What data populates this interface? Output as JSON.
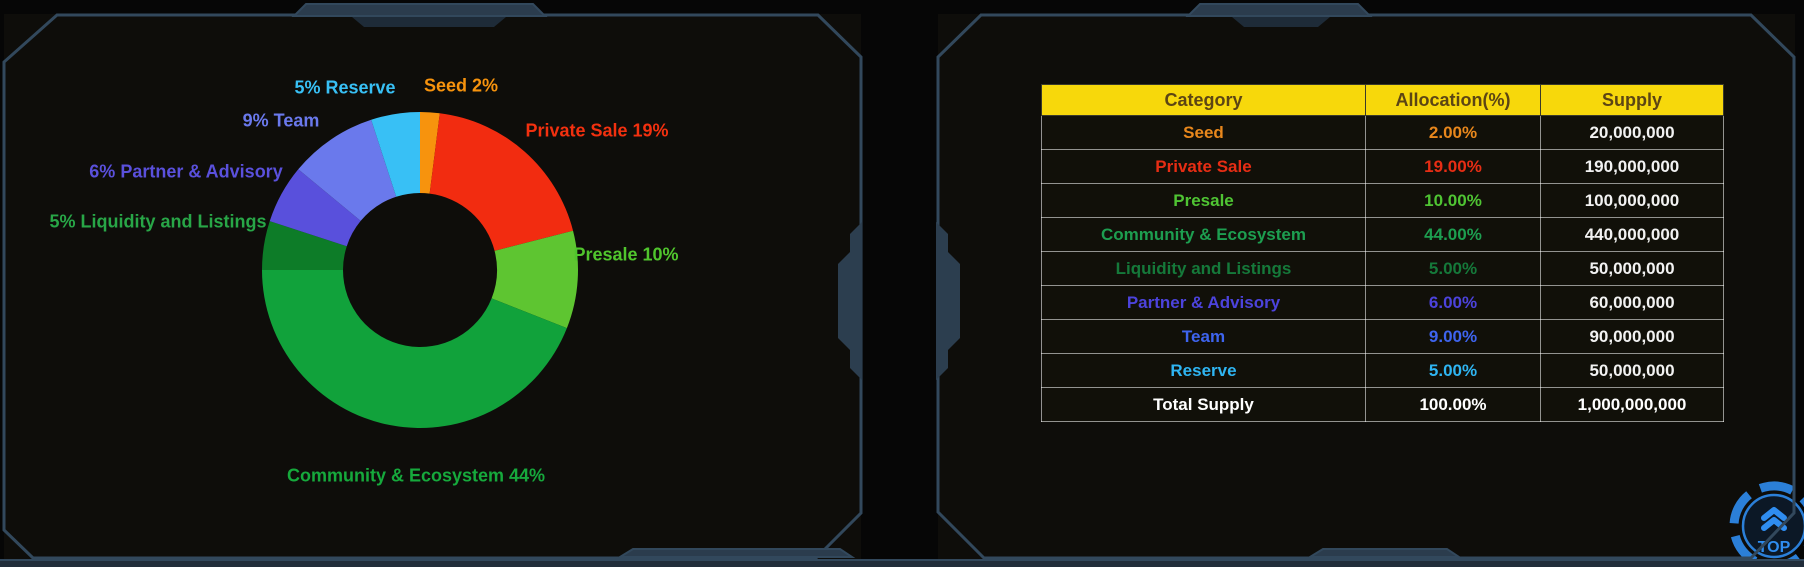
{
  "chart_data": {
    "type": "pie",
    "style": "donut",
    "title": "",
    "start_angle_deg": -90,
    "direction": "clockwise",
    "slices": [
      {
        "name": "Seed",
        "value_pct": 2,
        "label": "Seed 2%",
        "color": "#f7930d",
        "label_color": "#f7930d"
      },
      {
        "name": "Private Sale",
        "value_pct": 19,
        "label": "Private Sale 19%",
        "color": "#f22c10",
        "label_color": "#f2300f"
      },
      {
        "name": "Presale",
        "value_pct": 10,
        "label": "Presale 10%",
        "color": "#5ec531",
        "label_color": "#50c52d"
      },
      {
        "name": "Community & Ecosystem",
        "value_pct": 44,
        "label": "Community & Ecosystem 44%",
        "color": "#11a23b",
        "label_color": "#16a93c"
      },
      {
        "name": "Liquidity and Listings",
        "value_pct": 5,
        "label": "5% Liquidity and Listings",
        "color": "#0d7c28",
        "label_color": "#28a647"
      },
      {
        "name": "Partner & Advisory",
        "value_pct": 6,
        "label": "6% Partner & Advisory",
        "color": "#5950dc",
        "label_color": "#5a50dc"
      },
      {
        "name": "Team",
        "value_pct": 9,
        "label": "9% Team",
        "color": "#6a79ec",
        "label_color": "#6a79ec"
      },
      {
        "name": "Reserve",
        "value_pct": 5,
        "label": "5% Reserve",
        "color": "#38c0f5",
        "label_color": "#38c0f5"
      }
    ]
  },
  "table": {
    "headers": [
      "Category",
      "Allocation(%)",
      "Supply"
    ],
    "header_bg": "#f7d80b",
    "header_text_color": "#5c4514",
    "supply_color": "#f2f2f2",
    "rows": [
      {
        "category": "Seed",
        "allocation": "2.00%",
        "supply": "20,000,000",
        "color": "#e8871c",
        "is_total": false
      },
      {
        "category": "Private Sale",
        "allocation": "19.00%",
        "supply": "190,000,000",
        "color": "#e72d14",
        "is_total": false
      },
      {
        "category": "Presale",
        "allocation": "10.00%",
        "supply": "100,000,000",
        "color": "#4fc433",
        "is_total": false
      },
      {
        "category": "Community & Ecosystem",
        "allocation": "44.00%",
        "supply": "440,000,000",
        "color": "#1d9e50",
        "is_total": false
      },
      {
        "category": "Liquidity and Listings",
        "allocation": "5.00%",
        "supply": "50,000,000",
        "color": "#15793a",
        "is_total": false
      },
      {
        "category": "Partner & Advisory",
        "allocation": "6.00%",
        "supply": "60,000,000",
        "color": "#4c43dc",
        "is_total": false
      },
      {
        "category": "Team",
        "allocation": "9.00%",
        "supply": "90,000,000",
        "color": "#3e64ee",
        "is_total": false
      },
      {
        "category": "Reserve",
        "allocation": "5.00%",
        "supply": "50,000,000",
        "color": "#2fb5f2",
        "is_total": false
      },
      {
        "category": "Total Supply",
        "allocation": "100.00%",
        "supply": "1,000,000,000",
        "color": "#ffffff",
        "is_total": true
      }
    ]
  },
  "top_button": {
    "label": "TOP",
    "accent": "#2f8df0"
  }
}
